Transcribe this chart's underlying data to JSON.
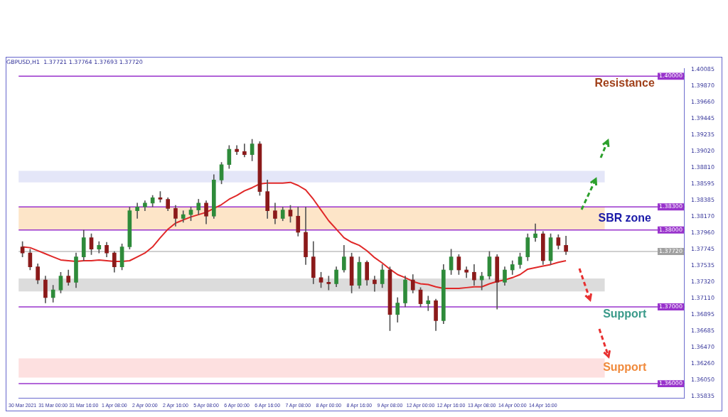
{
  "chart_data": {
    "type": "candlestick",
    "title": "GBPUSD,H1  1.37721 1.37764 1.37693 1.37720",
    "categories": [
      "30 Mar 2021",
      null,
      null,
      null,
      "31 Mar 00:00",
      null,
      null,
      null,
      "31 Mar 16:00",
      null,
      null,
      null,
      "1 Apr 08:00",
      null,
      null,
      null,
      "2 Apr 00:00",
      null,
      null,
      null,
      "2 Apr 16:00",
      null,
      null,
      null,
      "5 Apr 08:00",
      null,
      null,
      null,
      "6 Apr 00:00",
      null,
      null,
      null,
      "6 Apr 16:00",
      null,
      null,
      null,
      "7 Apr 08:00",
      null,
      null,
      null,
      "8 Apr 00:00",
      null,
      null,
      null,
      "8 Apr 16:00",
      null,
      null,
      null,
      "9 Apr 08:00",
      null,
      null,
      null,
      "12 Apr 00:00",
      null,
      null,
      null,
      "12 Apr 16:00",
      null,
      null,
      null,
      "13 Apr 08:00",
      null,
      null,
      null,
      "14 Apr 00:00",
      null,
      null,
      null,
      "14 Apr 16:00",
      null,
      null,
      null,
      null,
      null,
      null,
      null,
      null,
      null,
      null,
      null,
      null,
      null,
      null,
      null,
      null,
      null,
      null
    ],
    "ohlc": [
      [
        1.3778,
        1.3785,
        1.3765,
        1.377
      ],
      [
        1.377,
        1.3775,
        1.3748,
        1.3752
      ],
      [
        1.3752,
        1.3756,
        1.373,
        1.3735
      ],
      [
        1.3735,
        1.374,
        1.3705,
        1.3712
      ],
      [
        1.3712,
        1.3728,
        1.3706,
        1.3722
      ],
      [
        1.3722,
        1.3745,
        1.3718,
        1.374
      ],
      [
        1.374,
        1.3748,
        1.3728,
        1.3732
      ],
      [
        1.3732,
        1.377,
        1.3725,
        1.3765
      ],
      [
        1.3765,
        1.38,
        1.376,
        1.379
      ],
      [
        1.379,
        1.3795,
        1.3768,
        1.3775
      ],
      [
        1.3775,
        1.3785,
        1.377,
        1.378
      ],
      [
        1.378,
        1.3784,
        1.3765,
        1.377
      ],
      [
        1.377,
        1.3772,
        1.3745,
        1.3752
      ],
      [
        1.3752,
        1.3782,
        1.3748,
        1.3778
      ],
      [
        1.3778,
        1.383,
        1.3775,
        1.3825
      ],
      [
        1.3825,
        1.3835,
        1.3815,
        1.383
      ],
      [
        1.383,
        1.3838,
        1.3825,
        1.3835
      ],
      [
        1.3835,
        1.3845,
        1.383,
        1.3842
      ],
      [
        1.3842,
        1.385,
        1.3836,
        1.384
      ],
      [
        1.384,
        1.3842,
        1.3825,
        1.3828
      ],
      [
        1.3828,
        1.3832,
        1.3805,
        1.3815
      ],
      [
        1.3815,
        1.3825,
        1.381,
        1.382
      ],
      [
        1.382,
        1.383,
        1.3812,
        1.3826
      ],
      [
        1.3826,
        1.384,
        1.382,
        1.3835
      ],
      [
        1.3835,
        1.3838,
        1.3808,
        1.3818
      ],
      [
        1.3818,
        1.3872,
        1.3815,
        1.3865
      ],
      [
        1.3865,
        1.3888,
        1.386,
        1.3885
      ],
      [
        1.3885,
        1.391,
        1.388,
        1.3905
      ],
      [
        1.3905,
        1.391,
        1.3898,
        1.3902
      ],
      [
        1.3902,
        1.3912,
        1.3895,
        1.3898
      ],
      [
        1.3898,
        1.3918,
        1.389,
        1.3912
      ],
      [
        1.3912,
        1.3915,
        1.3845,
        1.385
      ],
      [
        1.385,
        1.3865,
        1.3815,
        1.3825
      ],
      [
        1.3825,
        1.3835,
        1.3808,
        1.3815
      ],
      [
        1.3815,
        1.383,
        1.3812,
        1.3826
      ],
      [
        1.3826,
        1.3832,
        1.381,
        1.3818
      ],
      [
        1.3818,
        1.383,
        1.3792,
        1.3797
      ],
      [
        1.3797,
        1.383,
        1.3755,
        1.3765
      ],
      [
        1.3765,
        1.3785,
        1.373,
        1.3738
      ],
      [
        1.3738,
        1.3745,
        1.3725,
        1.3732
      ],
      [
        1.3732,
        1.374,
        1.3722,
        1.373
      ],
      [
        1.373,
        1.3752,
        1.3726,
        1.3748
      ],
      [
        1.3748,
        1.378,
        1.3745,
        1.3765
      ],
      [
        1.3765,
        1.377,
        1.3718,
        1.3728
      ],
      [
        1.3728,
        1.3765,
        1.3724,
        1.3758
      ],
      [
        1.3758,
        1.376,
        1.3728,
        1.3735
      ],
      [
        1.3735,
        1.374,
        1.372,
        1.373
      ],
      [
        1.373,
        1.3755,
        1.3725,
        1.3748
      ],
      [
        1.3748,
        1.3752,
        1.3669,
        1.369
      ],
      [
        1.369,
        1.3712,
        1.368,
        1.3705
      ],
      [
        1.3705,
        1.374,
        1.37,
        1.3735
      ],
      [
        1.3735,
        1.3742,
        1.3718,
        1.3722
      ],
      [
        1.3722,
        1.3725,
        1.37,
        1.3704
      ],
      [
        1.3704,
        1.3714,
        1.3695,
        1.3708
      ],
      [
        1.3708,
        1.371,
        1.3669,
        1.3682
      ],
      [
        1.3682,
        1.3755,
        1.3678,
        1.3748
      ],
      [
        1.3748,
        1.3775,
        1.3742,
        1.3765
      ],
      [
        1.3765,
        1.3768,
        1.3742,
        1.3748
      ],
      [
        1.3748,
        1.3752,
        1.3738,
        1.3745
      ],
      [
        1.3745,
        1.3755,
        1.3728,
        1.3735
      ],
      [
        1.3735,
        1.3745,
        1.3722,
        1.374
      ],
      [
        1.374,
        1.3772,
        1.3736,
        1.3765
      ],
      [
        1.3765,
        1.3768,
        1.3697,
        1.3732
      ],
      [
        1.3732,
        1.3752,
        1.3728,
        1.3748
      ],
      [
        1.3748,
        1.376,
        1.3742,
        1.3755
      ],
      [
        1.3755,
        1.377,
        1.375,
        1.3765
      ],
      [
        1.3765,
        1.3795,
        1.376,
        1.379
      ],
      [
        1.379,
        1.3808,
        1.3785,
        1.3795
      ],
      [
        1.3795,
        1.3798,
        1.3755,
        1.376
      ],
      [
        1.376,
        1.3795,
        1.3755,
        1.379
      ],
      [
        1.379,
        1.3794,
        1.3775,
        1.378
      ],
      [
        1.378,
        1.3792,
        1.3768,
        1.3772
      ],
      null,
      null,
      null,
      null,
      null,
      null,
      null,
      null,
      null,
      null,
      null,
      null,
      null,
      null,
      null
    ],
    "series": [
      {
        "type": "line",
        "color": "#e02828",
        "values": [
          1.3778,
          1.3777,
          1.3773,
          1.3769,
          1.3765,
          1.3761,
          1.376,
          1.3759,
          1.376,
          1.376,
          1.3761,
          1.376,
          1.3759,
          1.3759,
          1.376,
          1.3765,
          1.377,
          1.3778,
          1.379,
          1.3801,
          1.3809,
          1.3813,
          1.3817,
          1.382,
          1.3823,
          1.3828,
          1.3833,
          1.384,
          1.3845,
          1.3851,
          1.3855,
          1.386,
          1.3861,
          1.3861,
          1.3861,
          1.3862,
          1.3858,
          1.3852,
          1.384,
          1.3826,
          1.3812,
          1.3801,
          1.379,
          1.3784,
          1.378,
          1.3773,
          1.3764,
          1.3757,
          1.3749,
          1.3742,
          1.3738,
          1.3733,
          1.373,
          1.3729,
          1.3726,
          1.3724,
          1.3724,
          1.3724,
          1.3725,
          1.3726,
          1.3726,
          1.373,
          1.3733,
          1.3735,
          1.3738,
          1.3742,
          1.3749,
          1.3751,
          1.3753,
          1.3755,
          1.3758,
          1.376,
          null,
          null,
          null,
          null,
          null,
          null,
          null,
          null,
          null,
          null,
          null,
          null,
          null,
          null,
          null
        ]
      }
    ],
    "ylim": [
      1.3581,
      1.401
    ],
    "yticks": [
      1.40085,
      {
        "value": 1.3987,
        "label": "1.39870"
      },
      {
        "value": 1.3966,
        "label": "1.39660"
      },
      1.39445,
      1.39235,
      {
        "value": 1.3902,
        "label": "1.39020"
      },
      {
        "value": 1.3881,
        "label": "1.38810"
      },
      1.38595,
      1.38385,
      {
        "value": 1.3817,
        "label": "1.38170"
      },
      {
        "value": 1.3796,
        "label": "1.37960"
      },
      1.37745,
      1.37535,
      {
        "value": 1.3732,
        "label": "1.37320"
      },
      {
        "value": 1.3711,
        "label": "1.37110"
      },
      1.36895,
      1.36685,
      {
        "value": 1.3647,
        "label": "1.36470"
      },
      {
        "value": 1.3626,
        "label": "1.36260"
      },
      {
        "value": 1.3605,
        "label": "1.36050"
      },
      1.35835
    ],
    "ref_lines": [
      {
        "axis": "y",
        "value": 1.4,
        "label": "1.40000",
        "color": "#9933cc"
      },
      {
        "axis": "y",
        "value": 1.383,
        "label": "1.38300",
        "color": "#9933cc"
      },
      {
        "axis": "y",
        "value": 1.38,
        "label": "1.38000",
        "color": "#9933cc"
      },
      {
        "axis": "y",
        "value": 1.3772,
        "label": "1.37720",
        "color": "#a0a0a0"
      },
      {
        "axis": "y",
        "value": 1.37,
        "label": "1.37000",
        "color": "#9933cc"
      },
      {
        "axis": "y",
        "value": 1.36,
        "label": "1.36000",
        "color": "#9933cc"
      }
    ],
    "bands": [
      {
        "axis": "y",
        "from": 1.3862,
        "to": 1.3877,
        "color": "#e4e6f8"
      },
      {
        "axis": "y",
        "from": 1.38,
        "to": 1.383,
        "label": "SBR zone",
        "color": "#fde5c8"
      },
      {
        "axis": "y",
        "from": 1.372,
        "to": 1.3737,
        "color": "#dcdcdc"
      },
      {
        "axis": "y",
        "from": 1.3608,
        "to": 1.3633,
        "label": "Support",
        "color": "#fde0e0"
      }
    ],
    "annotations": [
      "Resistance",
      "Support"
    ],
    "grid": false,
    "legend": false
  }
}
